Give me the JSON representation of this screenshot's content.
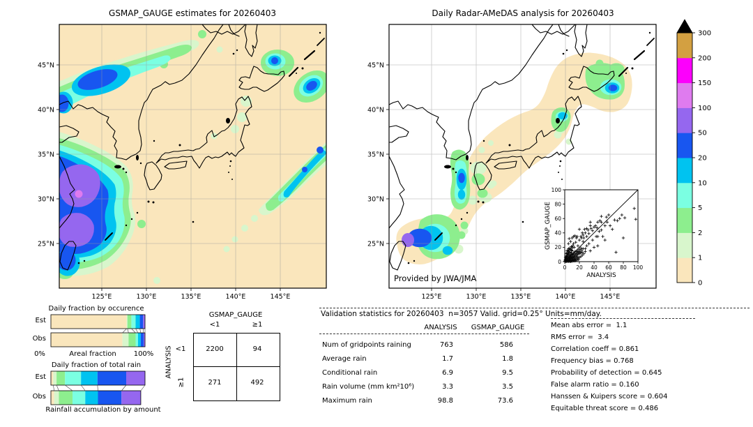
{
  "figure": {
    "left_map_title": "GSMAP_GAUGE estimates for 20260403",
    "right_map_title": "Daily Radar-AMeDAS analysis for 20260403",
    "credit": "Provided by JWA/JMA"
  },
  "map_ticks": {
    "lon": [
      "125°E",
      "130°E",
      "135°E",
      "140°E",
      "145°E"
    ],
    "lat": [
      "45°N",
      "40°N",
      "35°N",
      "30°N",
      "25°N"
    ]
  },
  "colorbar": {
    "levels": [
      "0",
      "1",
      "2",
      "5",
      "10",
      "20",
      "50",
      "100",
      "150",
      "200",
      "300"
    ],
    "colors": [
      "#FAE6BC",
      "#D8F6CC",
      "#8DEE8E",
      "#7BFFE2",
      "#00C3F0",
      "#1856F0",
      "#9567EF",
      "#DF7BEF",
      "#FC00FC",
      "#D3A041"
    ],
    "overflow_color": "#000000"
  },
  "misc": {
    "eq": "="
  },
  "occurrence_chart": {
    "title": "Daily fraction by occurence",
    "row_labels": [
      "Est",
      "Obs"
    ],
    "x_left": "0%",
    "x_center": "Areal fraction",
    "x_right": "100%"
  },
  "totalrain_chart": {
    "title": "Daily fraction of total rain",
    "row_labels": [
      "Est",
      "Obs"
    ],
    "caption": "Rainfall accumulation by amount"
  },
  "contingency": {
    "col_title": "GSMAP_GAUGE",
    "row_title": "ANALYSIS",
    "col_labels": [
      "<1",
      "≥1"
    ],
    "row_labels": [
      "<1",
      "≥1"
    ],
    "values": [
      [
        "2200",
        "94"
      ],
      [
        "271",
        "492"
      ]
    ]
  },
  "validation": {
    "title": "Validation statistics for 20260403  n=3057 Valid. grid=0.25° Units=mm/day.",
    "columns": [
      "ANALYSIS",
      "GSMAP_GAUGE"
    ],
    "rows": [
      {
        "label": "Num of gridpoints raining",
        "analysis": "763",
        "gsmap": "586"
      },
      {
        "label": "Average rain",
        "analysis": "1.7",
        "gsmap": "1.8"
      },
      {
        "label": "Conditional rain",
        "analysis": "6.9",
        "gsmap": "9.5"
      },
      {
        "label": "Rain volume (mm km²10⁶)",
        "analysis": "3.3",
        "gsmap": "3.5"
      },
      {
        "label": "Maximum rain",
        "analysis": "98.8",
        "gsmap": "73.6"
      }
    ],
    "scores": [
      {
        "label": "Mean abs error",
        "value": "1.1"
      },
      {
        "label": "RMS error",
        "value": "3.4"
      },
      {
        "label": "Correlation coeff",
        "value": "0.861"
      },
      {
        "label": "Frequency bias",
        "value": "0.768"
      },
      {
        "label": "Probability of detection",
        "value": "0.645"
      },
      {
        "label": "False alarm ratio",
        "value": "0.160"
      },
      {
        "label": "Hanssen & Kuipers score",
        "value": "0.604"
      },
      {
        "label": "Equitable threat score",
        "value": "0.486"
      }
    ]
  },
  "chart_data": [
    {
      "id": "gsmap_map",
      "type": "heatmap",
      "title": "GSMAP_GAUGE estimates for 20260403",
      "units": "mm/day",
      "lon_range": [
        120,
        150
      ],
      "lat_range": [
        20,
        49.5
      ],
      "lon_ticks": [
        "125°E",
        "130°E",
        "135°E",
        "140°E",
        "145°E"
      ],
      "lat_ticks": [
        "45°N",
        "40°N",
        "35°N",
        "30°N",
        "25°N"
      ],
      "palette_levels": [
        0,
        1,
        2,
        5,
        10,
        20,
        50,
        100,
        150,
        200,
        300
      ],
      "description": "Daily rainfall field: heavy band (20-150 mm/day) over East China Sea SW of Korea and Kyushu, rain band NW of Korea, cells east of Hokkaido, SE ocean band"
    },
    {
      "id": "radar_map",
      "type": "heatmap",
      "title": "Daily Radar-AMeDAS analysis for 20260403",
      "units": "mm/day",
      "lon_range": [
        120,
        150
      ],
      "lat_range": [
        20,
        49.5
      ],
      "lon_ticks": [
        "125°E",
        "130°E",
        "135°E",
        "140°E",
        "145°E"
      ],
      "lat_ticks": [
        "45°N",
        "40°N",
        "35°N",
        "30°N",
        "25°N"
      ],
      "palette_levels": [
        0,
        1,
        2,
        5,
        10,
        20,
        50,
        100,
        150,
        200,
        300
      ],
      "description": "Radar coverage band (0-1 mm/day) along Japan archipelago with rain cells near Okinawa (up to 50-100), west Kyushu, Niigata coast and east Hokkaido"
    },
    {
      "id": "occurrence",
      "type": "bar",
      "stacked": true,
      "orientation": "horizontal",
      "title": "Daily fraction by occurence",
      "xlabel": "Areal fraction",
      "xlim_labels": [
        "0%",
        "100%"
      ],
      "categories": [
        "0-1",
        "1-2",
        "2-5",
        "5-10",
        "10-20",
        "20-50",
        "50-100"
      ],
      "series": [
        {
          "name": "Est",
          "values": [
            80.5,
            0.8,
            4.2,
            4.5,
            4.5,
            3.5,
            2.0
          ]
        },
        {
          "name": "Obs",
          "values": [
            76.0,
            6.5,
            7.5,
            2.5,
            3.0,
            3.0,
            1.5
          ]
        }
      ]
    },
    {
      "id": "totalrain",
      "type": "bar",
      "stacked": true,
      "orientation": "horizontal",
      "title": "Daily fraction of total rain",
      "xlabel": "Rainfall accumulation by amount",
      "categories": [
        "0-1",
        "1-2",
        "2-5",
        "5-10",
        "10-20",
        "20-50",
        "50-100"
      ],
      "series": [
        {
          "name": "Est",
          "values": [
            2.5,
            3.5,
            9.0,
            17.0,
            17.5,
            30.5,
            20.0
          ]
        },
        {
          "name": "Obs",
          "values": [
            3.5,
            5.0,
            14.5,
            13.5,
            13.5,
            25.0,
            20.5
          ]
        }
      ]
    },
    {
      "id": "scatter",
      "type": "scatter",
      "xlabel": "ANALYSIS",
      "ylabel": "GSMAP_GAUGE",
      "xlim": [
        0,
        100
      ],
      "ylim": [
        0,
        100
      ],
      "identity_line": true,
      "tick_labels": [
        "0",
        "20",
        "40",
        "60",
        "80",
        "100"
      ],
      "points": [
        [
          1,
          1
        ],
        [
          1,
          3
        ],
        [
          2,
          1
        ],
        [
          2,
          2
        ],
        [
          2,
          5
        ],
        [
          3,
          1
        ],
        [
          3,
          3
        ],
        [
          3,
          7
        ],
        [
          4,
          2
        ],
        [
          4,
          5
        ],
        [
          4,
          9
        ],
        [
          5,
          1
        ],
        [
          5,
          4
        ],
        [
          5,
          7
        ],
        [
          5,
          12
        ],
        [
          6,
          2
        ],
        [
          6,
          6
        ],
        [
          6,
          10
        ],
        [
          7,
          3
        ],
        [
          7,
          8
        ],
        [
          7,
          13
        ],
        [
          8,
          1
        ],
        [
          8,
          5
        ],
        [
          8,
          9
        ],
        [
          9,
          4
        ],
        [
          9,
          7
        ],
        [
          9,
          12
        ],
        [
          10,
          2
        ],
        [
          10,
          6
        ],
        [
          10,
          10
        ],
        [
          10,
          15
        ],
        [
          11,
          5
        ],
        [
          11,
          9
        ],
        [
          12,
          3
        ],
        [
          12,
          7
        ],
        [
          12,
          12
        ],
        [
          13,
          6
        ],
        [
          13,
          10
        ],
        [
          14,
          4
        ],
        [
          14,
          8
        ],
        [
          14,
          14
        ],
        [
          15,
          6
        ],
        [
          15,
          11
        ],
        [
          16,
          9
        ],
        [
          16,
          14
        ],
        [
          17,
          7
        ],
        [
          17,
          12
        ],
        [
          18,
          10
        ],
        [
          18,
          15
        ],
        [
          19,
          13
        ],
        [
          20,
          11
        ],
        [
          20,
          17
        ],
        [
          21,
          14
        ],
        [
          22,
          12
        ],
        [
          22,
          19
        ],
        [
          23,
          16
        ],
        [
          24,
          13
        ],
        [
          25,
          18
        ],
        [
          2,
          8
        ],
        [
          3,
          12
        ],
        [
          4,
          15
        ],
        [
          5,
          18
        ],
        [
          6,
          16
        ],
        [
          7,
          19
        ],
        [
          8,
          17
        ],
        [
          9,
          21
        ],
        [
          10,
          19
        ],
        [
          11,
          22
        ],
        [
          12,
          25
        ],
        [
          13,
          20
        ],
        [
          1,
          6
        ],
        [
          2,
          11
        ],
        [
          3,
          15
        ],
        [
          0.5,
          2
        ],
        [
          1.5,
          4
        ],
        [
          2.5,
          6
        ],
        [
          3.5,
          9
        ],
        [
          4.5,
          11
        ],
        [
          5.5,
          14
        ],
        [
          6.5,
          3
        ],
        [
          7.5,
          6
        ],
        [
          8.5,
          12
        ],
        [
          9.5,
          16
        ],
        [
          0.5,
          0.5
        ],
        [
          1,
          0.5
        ],
        [
          2,
          0.3
        ],
        [
          3,
          0.5
        ],
        [
          4,
          0.8
        ],
        [
          5,
          0.3
        ],
        [
          6,
          0.8
        ],
        [
          7,
          0.5
        ],
        [
          8,
          0.3
        ],
        [
          9,
          1
        ],
        [
          10,
          0.5
        ],
        [
          11,
          2
        ],
        [
          12,
          1
        ],
        [
          13,
          3
        ],
        [
          14,
          1
        ],
        [
          15,
          2
        ],
        [
          16,
          4
        ],
        [
          17,
          2
        ],
        [
          18,
          5
        ],
        [
          19,
          3
        ],
        [
          20,
          6
        ],
        [
          22,
          7
        ],
        [
          24,
          9
        ],
        [
          26,
          11
        ],
        [
          28,
          14
        ],
        [
          5,
          25
        ],
        [
          8,
          28
        ],
        [
          10,
          33
        ],
        [
          12,
          35
        ],
        [
          6,
          32
        ],
        [
          15,
          27
        ],
        [
          16,
          33
        ],
        [
          14,
          36
        ],
        [
          18,
          22
        ],
        [
          17,
          35
        ],
        [
          20,
          30
        ],
        [
          20,
          45
        ],
        [
          22,
          35
        ],
        [
          23,
          33
        ],
        [
          25,
          37
        ],
        [
          26,
          33
        ],
        [
          28,
          40
        ],
        [
          28,
          18
        ],
        [
          30,
          46
        ],
        [
          30,
          35
        ],
        [
          32,
          44
        ],
        [
          33,
          39
        ],
        [
          33,
          25
        ],
        [
          35,
          50
        ],
        [
          35,
          55
        ],
        [
          36,
          46
        ],
        [
          38,
          43
        ],
        [
          38,
          30
        ],
        [
          40,
          48
        ],
        [
          42,
          50
        ],
        [
          43,
          35
        ],
        [
          45,
          22
        ],
        [
          45,
          35
        ],
        [
          45,
          55
        ],
        [
          47,
          42
        ],
        [
          48,
          57
        ],
        [
          50,
          44
        ],
        [
          50,
          63
        ],
        [
          52,
          35
        ],
        [
          55,
          50
        ],
        [
          55,
          30
        ],
        [
          57,
          62
        ],
        [
          58,
          55
        ],
        [
          60,
          65
        ],
        [
          62,
          50
        ],
        [
          65,
          45
        ],
        [
          68,
          58
        ],
        [
          70,
          13
        ],
        [
          72,
          57
        ],
        [
          75,
          60
        ],
        [
          78,
          65
        ],
        [
          80,
          33
        ],
        [
          82,
          61
        ],
        [
          95,
          74
        ],
        [
          97,
          59
        ],
        [
          40,
          20
        ],
        [
          35,
          15
        ],
        [
          30,
          22
        ],
        [
          25,
          28
        ],
        [
          27,
          45
        ],
        [
          24,
          40
        ],
        [
          50,
          55
        ],
        [
          44,
          47
        ]
      ]
    },
    {
      "id": "contingency",
      "type": "table",
      "title": "Contingency table (gridpoints)",
      "col_group": "GSMAP_GAUGE",
      "row_group": "ANALYSIS",
      "col_labels": [
        "<1",
        "≥1"
      ],
      "row_labels": [
        "<1",
        "≥1"
      ],
      "values": [
        [
          2200,
          94
        ],
        [
          271,
          492
        ]
      ]
    }
  ]
}
